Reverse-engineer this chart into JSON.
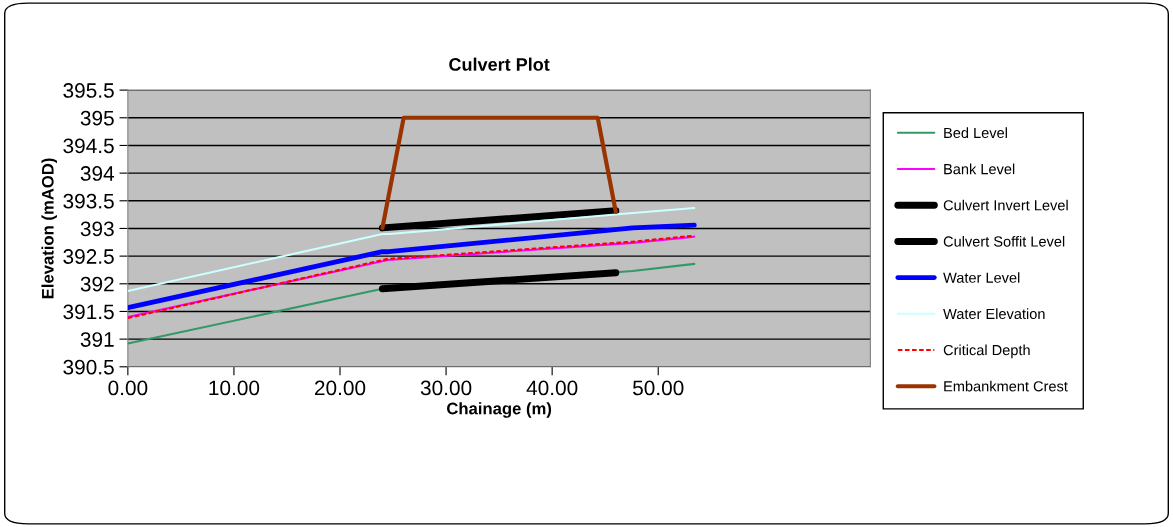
{
  "chart_data": {
    "type": "line",
    "title": "Culvert Plot",
    "xlabel": "Chainage (m)",
    "ylabel": "Elevation (mAOD)",
    "xlim": [
      0,
      70
    ],
    "ylim": [
      390.5,
      395.5
    ],
    "xticks": [
      {
        "value": 0,
        "label": "0.00"
      },
      {
        "value": 10,
        "label": "10.00"
      },
      {
        "value": 20,
        "label": "20.00"
      },
      {
        "value": 30,
        "label": "30.00"
      },
      {
        "value": 40,
        "label": "40.00"
      },
      {
        "value": 50,
        "label": "50.00"
      }
    ],
    "yticks": [
      390.5,
      391,
      391.5,
      392,
      392.5,
      393,
      393.5,
      394,
      394.5,
      395,
      395.5
    ],
    "grid": "y",
    "legend": "right",
    "marker": "none",
    "series": [
      {
        "name": "Bed Level",
        "color": "#339966",
        "x": [
          0,
          24,
          47.6,
          53.4
        ],
        "values": [
          390.92,
          391.91,
          392.23,
          392.36
        ]
      },
      {
        "name": "Bank Level",
        "color": "#ff00ff",
        "x": [
          0,
          24.5,
          47.6,
          53.4
        ],
        "values": [
          391.4,
          392.43,
          392.74,
          392.85
        ]
      },
      {
        "name": "Culvert Invert Level",
        "color": "#000000",
        "x": [
          24,
          46
        ],
        "values": [
          393.01,
          393.32
        ]
      },
      {
        "name": "Culvert Soffit Level",
        "color": "#000000",
        "x": [
          24,
          46
        ],
        "values": [
          391.91,
          392.2
        ]
      },
      {
        "name": "Water Level",
        "color": "#0000ff",
        "x": [
          0,
          24,
          24.6,
          47.6,
          53.4
        ],
        "values": [
          391.57,
          392.58,
          392.58,
          393.01,
          393.06
        ]
      },
      {
        "name": "Water Elevation",
        "color": "#ccffff",
        "x": [
          0,
          24,
          24.7,
          47.6,
          53.4
        ],
        "values": [
          391.87,
          392.9,
          392.9,
          393.28,
          393.37
        ]
      },
      {
        "name": "Critical Depth",
        "color": "#ff0000",
        "line_style": "dashed",
        "x": [
          0,
          24.5,
          47.6,
          53.4
        ],
        "values": [
          391.38,
          392.45,
          392.76,
          392.87
        ]
      },
      {
        "name": "Embankment Crest",
        "color": "#993300",
        "x": [
          24,
          26,
          44.3,
          46
        ],
        "values": [
          393.01,
          395.0,
          395.0,
          393.3
        ]
      }
    ]
  }
}
